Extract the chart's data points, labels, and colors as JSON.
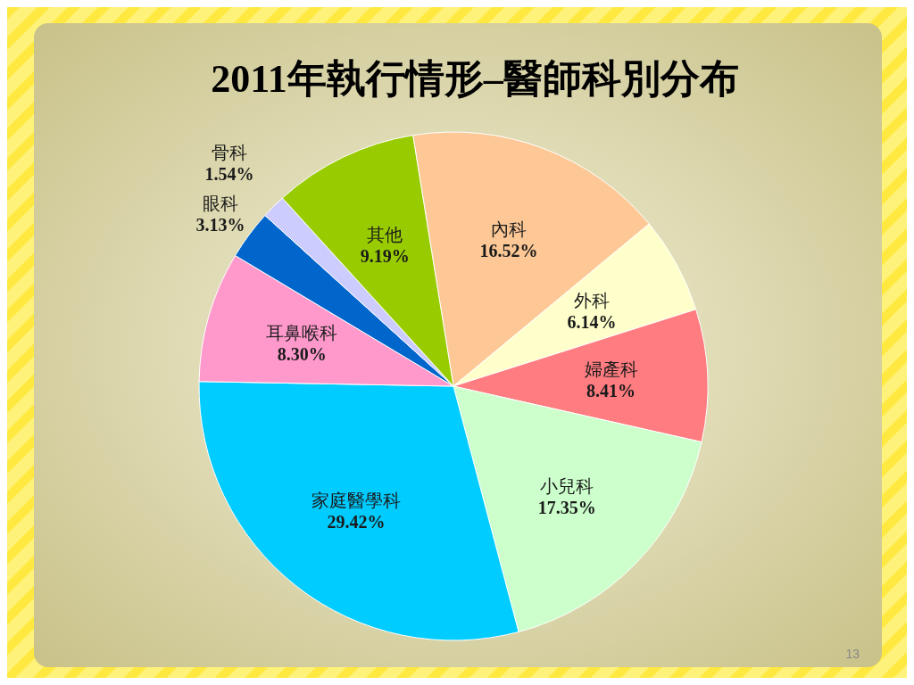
{
  "chart_data": {
    "type": "pie",
    "title": "2011年執行情形–醫師科別分布",
    "categories": [
      "內科",
      "外科",
      "婦產科",
      "小兒科",
      "家庭醫學科",
      "耳鼻喉科",
      "眼科",
      "骨科",
      "其他"
    ],
    "values": [
      16.52,
      6.14,
      8.41,
      17.35,
      29.42,
      8.3,
      3.13,
      1.54,
      9.19
    ],
    "value_labels": [
      "16.52%",
      "6.14%",
      "8.41%",
      "17.35%",
      "29.42%",
      "8.30%",
      "3.13%",
      "1.54%",
      "9.19%"
    ],
    "colors": [
      "#fdc896",
      "#ffffcc",
      "#ff7c80",
      "#ccffcc",
      "#00ccff",
      "#ff99cc",
      "#0066cc",
      "#ccccff",
      "#99cc00"
    ],
    "annotations": [
      "13"
    ]
  }
}
